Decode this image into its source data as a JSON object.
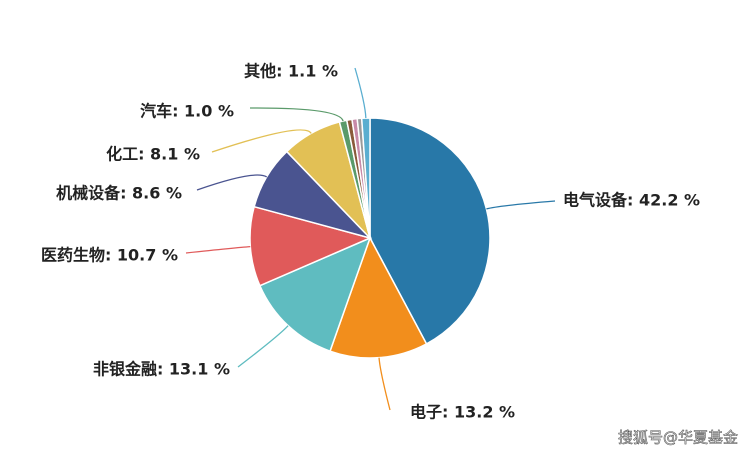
{
  "chart_data": {
    "type": "pie",
    "values": [
      42.2,
      13.2,
      13.1,
      10.7,
      8.6,
      8.1,
      1.0,
      0.7,
      0.7,
      0.6,
      1.1
    ],
    "value_labels": [
      "电气设备: 42.2 %",
      "电子: 13.2 %",
      "非银金融: 13.1 %",
      "医药生物: 10.7 %",
      "机械设备: 8.6 %",
      "化工: 8.1 %",
      "汽车: 1.0 %",
      null,
      null,
      null,
      "其他: 1.1 %"
    ],
    "colors": [
      "#2878a8",
      "#f28e1c",
      "#5fbcc0",
      "#e05a5a",
      "#4a5490",
      "#e2c055",
      "#5a9a6a",
      "#8a5a3a",
      "#c88aa8",
      "#9a9a9a",
      "#5aaed0"
    ],
    "watermark": "搜狐号@华夏基金"
  }
}
